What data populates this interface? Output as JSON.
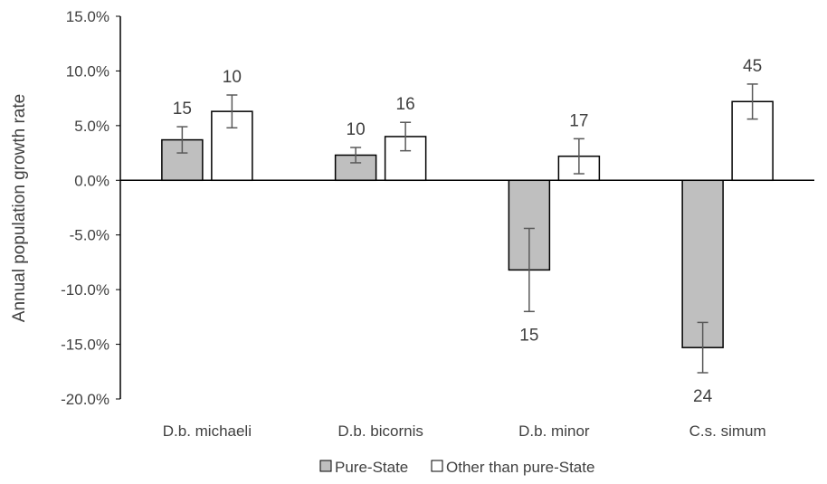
{
  "chart_data": {
    "type": "bar",
    "title": "",
    "xlabel": "",
    "ylabel": "Annual population growth rate",
    "ylim": [
      -20.0,
      15.0
    ],
    "yticks": [
      15.0,
      10.0,
      5.0,
      0.0,
      -5.0,
      -10.0,
      -15.0,
      -20.0
    ],
    "ytick_labels": [
      "15.0%",
      "10.0%",
      "5.0%",
      "0.0%",
      "-5.0%",
      "-10.0%",
      "-15.0%",
      "-20.0%"
    ],
    "categories": [
      "D.b. michaeli",
      "D.b. bicornis",
      "D.b. minor",
      "C.s. simum"
    ],
    "series": [
      {
        "name": "Pure-State",
        "color": "#bfbfbf",
        "values": [
          3.7,
          2.3,
          -8.2,
          -15.3
        ],
        "error_low": [
          2.5,
          1.6,
          -12.0,
          -17.6
        ],
        "error_high": [
          4.9,
          3.0,
          -4.4,
          -13.0
        ],
        "labels": [
          "15",
          "10",
          "15",
          "24"
        ]
      },
      {
        "name": "Other than pure-State",
        "color": "#ffffff",
        "values": [
          6.3,
          4.0,
          2.2,
          7.2
        ],
        "error_low": [
          4.8,
          2.7,
          0.6,
          5.6
        ],
        "error_high": [
          7.8,
          5.3,
          3.8,
          8.8
        ],
        "labels": [
          "10",
          "16",
          "17",
          "45"
        ]
      }
    ],
    "legend_position": "bottom",
    "grid": false
  }
}
